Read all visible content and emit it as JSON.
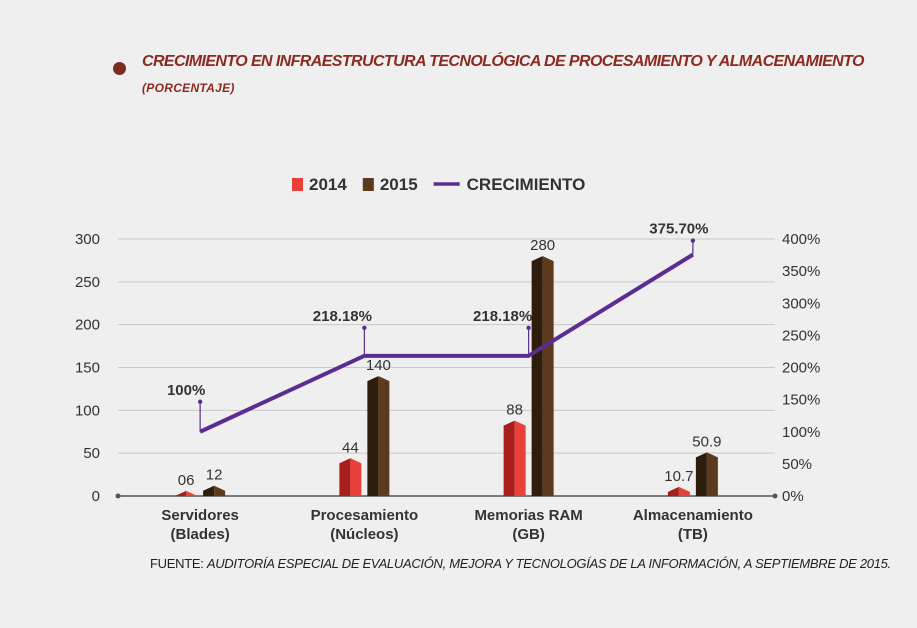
{
  "header": {
    "title": "CRECIMIENTO EN INFRAESTRUCTURA TECNOLÓGICA DE PROCESAMIENTO Y ALMACENAMIENTO",
    "subtitle": "(PORCENTAJE)"
  },
  "source": {
    "label": "FUENTE:",
    "text": "AUDITORÍA ESPECIAL  DE EVALUACIÓN, MEJORA Y TECNOLOGÍAS DE LA INFORMACIÓN, A SEPTIEMBRE DE 2015."
  },
  "colors": {
    "s2014": "#e8413a",
    "s2014_dark": "#a81e1a",
    "s2015": "#5b3a1e",
    "s2015_dark": "#2e1c0d",
    "line": "#5c2d91",
    "title": "#8c2a20",
    "grid": "#c9c9c9"
  },
  "chart_data": {
    "type": "bar",
    "title": "CRECIMIENTO EN INFRAESTRUCTURA TECNOLÓGICA DE PROCESAMIENTO Y ALMACENAMIENTO",
    "subtitle": "(PORCENTAJE)",
    "categories": [
      "Servidores\n(Blades)",
      "Procesamiento\n(Núcleos)",
      "Memorias RAM\n(GB)",
      "Almacenamiento\n(TB)"
    ],
    "series": [
      {
        "name": "2014",
        "type": "bar",
        "axis": "left",
        "values": [
          6,
          44,
          88,
          10.7
        ],
        "labels": [
          "06",
          "44",
          "88",
          "10.7"
        ]
      },
      {
        "name": "2015",
        "type": "bar",
        "axis": "left",
        "values": [
          12,
          140,
          280,
          50.9
        ],
        "labels": [
          "12",
          "140",
          "280",
          "50.9"
        ]
      },
      {
        "name": "CRECIMIENTO",
        "type": "line",
        "axis": "right",
        "values": [
          100,
          218.18,
          218.18,
          375.7
        ],
        "labels": [
          "100%",
          "218.18%",
          "218.18%",
          "375.70%"
        ]
      }
    ],
    "ylim": [
      0,
      300
    ],
    "yticks": [
      "0",
      "50",
      "100",
      "150",
      "200",
      "250",
      "300"
    ],
    "y2lim": [
      0,
      400
    ],
    "y2ticks": [
      "0%",
      "50%",
      "100%",
      "150%",
      "200%",
      "250%",
      "300%",
      "350%",
      "400%"
    ],
    "grid": true,
    "legend_position": "top-center"
  }
}
